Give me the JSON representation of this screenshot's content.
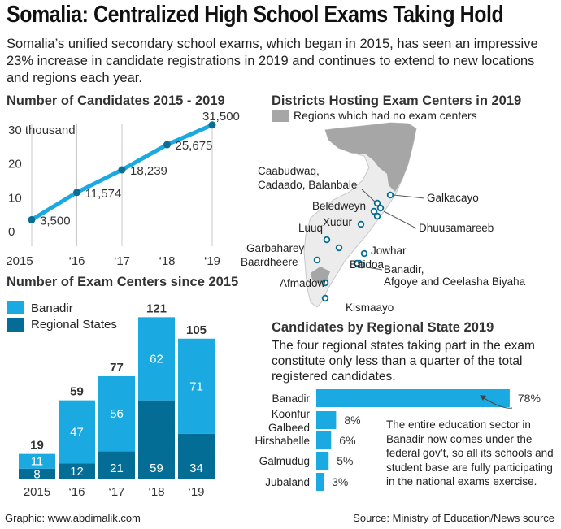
{
  "header": {
    "title": "Somalia: Centralized High School Exams Taking Hold",
    "intro": "Somalia’s unified secondary school exams, which began in 2015, has seen an impressive 23% increase in candidate registrations in 2019 and continues to extend to new locations and regions each year."
  },
  "sections": {
    "candidates_title": "Number of Candidates 2015 - 2019",
    "centers_title": "Number of Exam Centers since 2015",
    "districts_title": "Districts Hosting Exam Centers in 2019",
    "states_title": "Candidates by Regional State 2019",
    "states_description": "The four regional states taking part in the exam constitute only less than a quarter of the total registered candidates."
  },
  "map": {
    "legend_label": "Regions which had no exam centers",
    "legend_color": "#a6a6a6",
    "labels": [
      "Caabudwaq,",
      "Cadaado, Balanbale",
      "Galkacayo",
      "Beledweyn",
      "Dhuusamareeb",
      "Xudur",
      "Luuq",
      "Garbaharey",
      "Baardheere",
      "Jowhar",
      "Banadir,",
      "Afgoye and Ceelasha Biyaha",
      "Baidoa",
      "Afmadow",
      "Kismaayo"
    ]
  },
  "note": "The entire education sector in Banadir now comes under the federal gov’t, so all its schools and student base are fully participating in the national exams exercise.",
  "footer": {
    "left": "Graphic: www.abdimalik.com",
    "right": "Source: Ministry of Education/News source"
  },
  "colors": {
    "banadir": "#1ba9e1",
    "regional": "#046d96",
    "line": "#1ba9e1",
    "map_land": "#ececec",
    "map_gray": "#a6a6a6"
  },
  "chart_data": [
    {
      "type": "line",
      "title": "Number of Candidates 2015 - 2019",
      "x": [
        "2015",
        "‘16",
        "‘17",
        "‘18",
        "‘19"
      ],
      "values": [
        3500,
        11574,
        18239,
        25675,
        31500
      ],
      "data_labels": [
        "3,500",
        "11,574",
        "18,239",
        "25,675",
        "31,500"
      ],
      "y_ticks": [
        "0",
        "10",
        "20",
        "30 thousand"
      ],
      "ylim": [
        0,
        30000
      ],
      "grid": "vertical"
    },
    {
      "type": "bar",
      "title": "Number of Exam Centers since 2015",
      "categories": [
        "2015",
        "‘16",
        "‘17",
        "‘18",
        "‘19"
      ],
      "series": [
        {
          "name": "Regional States",
          "values": [
            8,
            12,
            21,
            59,
            34
          ]
        },
        {
          "name": "Banadir",
          "values": [
            11,
            47,
            56,
            62,
            71
          ]
        }
      ],
      "totals": [
        19,
        59,
        77,
        121,
        105
      ],
      "legend": "top-left",
      "stacked": true
    },
    {
      "type": "bar",
      "orientation": "horizontal",
      "title": "Candidates by Regional State 2019",
      "categories": [
        "Banadir",
        "Koonfur Galbeed",
        "Hirshabelle",
        "Galmudug",
        "Jubaland"
      ],
      "category_lines": [
        [
          "Banadir"
        ],
        [
          "Koonfur",
          "Galbeed"
        ],
        [
          "Hirshabelle"
        ],
        [
          "Galmudug"
        ],
        [
          "Jubaland"
        ]
      ],
      "values": [
        78,
        8,
        6,
        5,
        3
      ],
      "value_labels": [
        "78%",
        "8%",
        "6%",
        "5%",
        "3%"
      ],
      "unit": "%"
    }
  ]
}
